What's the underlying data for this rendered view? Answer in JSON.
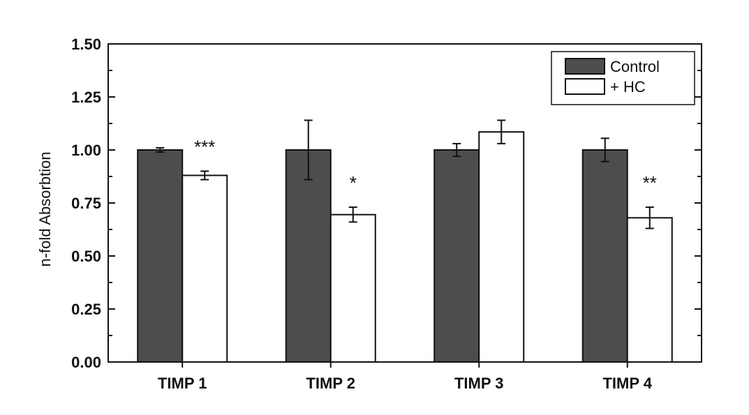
{
  "chart_data": {
    "type": "bar",
    "title": "",
    "xlabel": "",
    "ylabel": "n-fold Absorbtion",
    "ylim": [
      0,
      1.5
    ],
    "yticks": [
      "0.00",
      "0.25",
      "0.50",
      "0.75",
      "1.00",
      "1.25",
      "1.50"
    ],
    "categories": [
      "TIMP 1",
      "TIMP 2",
      "TIMP 3",
      "TIMP 4"
    ],
    "series": [
      {
        "name": "Control",
        "values": [
          1.0,
          1.0,
          1.0,
          1.0
        ],
        "errors": [
          0.01,
          0.14,
          0.03,
          0.055
        ],
        "color": "#4d4d4d"
      },
      {
        "name": "+ HC",
        "values": [
          0.88,
          0.695,
          1.085,
          0.68
        ],
        "errors": [
          0.02,
          0.035,
          0.055,
          0.05
        ],
        "color": "#ffffff"
      }
    ],
    "annotations": [
      "***",
      "*",
      "",
      "**"
    ],
    "legend_position": "top-right",
    "grid": false
  }
}
